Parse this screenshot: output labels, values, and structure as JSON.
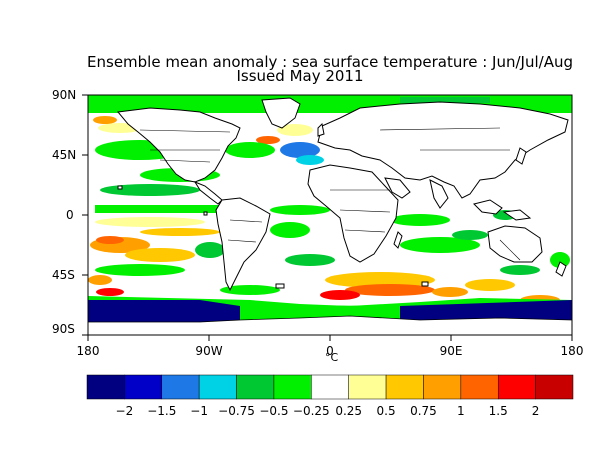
{
  "title_line1": "Ensemble mean anomaly : sea surface temperature : Jun/Jul/Aug",
  "title_line2": "Issued May 2011",
  "lat_labels": [
    "90N",
    "45N",
    "0",
    "45S",
    "90S"
  ],
  "lon_labels": [
    "180",
    "90W",
    "0",
    "90E",
    "180"
  ],
  "unit": "°C",
  "colorbar": {
    "colors": [
      "#000080",
      "#0000c8",
      "#1e78e6",
      "#00d2e6",
      "#00c832",
      "#00f000",
      "#ffffff",
      "#ffff96",
      "#ffc800",
      "#ffa000",
      "#ff6400",
      "#ff0000",
      "#c80000"
    ],
    "labels": [
      "−2",
      "−1.5",
      "−1",
      "−0.75",
      "−0.5",
      "−0.25",
      "0.25",
      "0.5",
      "0.75",
      "1",
      "1.5",
      "2"
    ]
  },
  "map_colors": {
    "ocean": "#ffffff",
    "land": "#ffffff",
    "coast": "#000000"
  }
}
